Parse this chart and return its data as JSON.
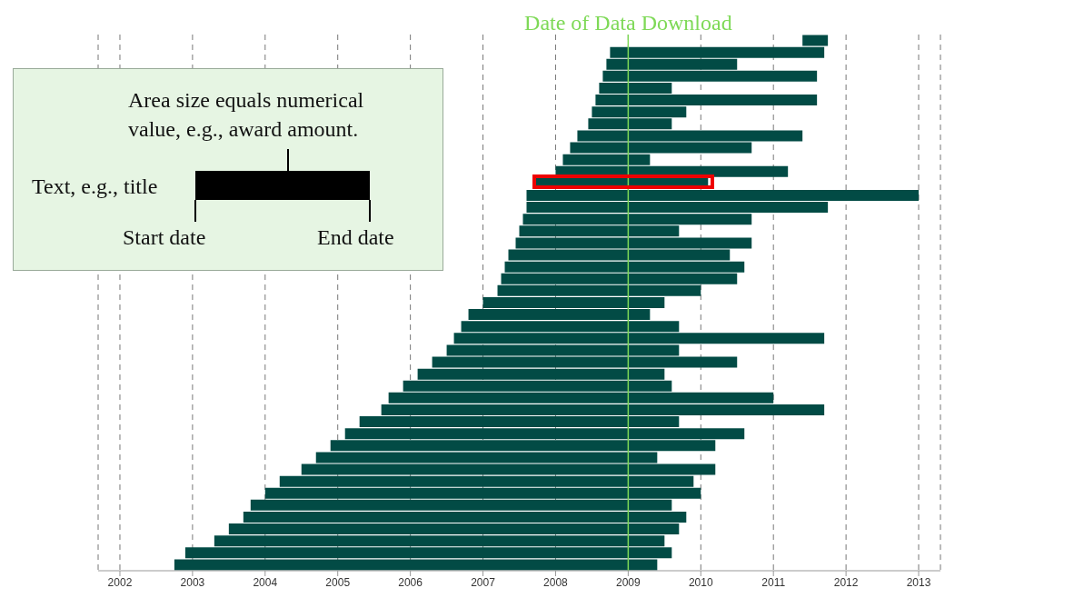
{
  "chart_data": {
    "type": "bar",
    "orientation": "horizontal",
    "tick_labels": "x",
    "grid": "x",
    "legend": false,
    "categories": [
      null,
      null,
      null,
      null,
      null,
      null,
      null,
      null,
      null,
      null,
      null,
      null,
      null,
      null,
      null,
      null,
      null,
      null,
      null,
      null,
      null,
      null,
      null,
      null,
      null,
      null,
      null,
      null,
      null,
      null,
      null,
      null,
      null,
      null,
      null,
      null,
      null,
      null,
      null,
      null,
      null,
      null,
      null,
      null,
      null
    ],
    "series": [
      {
        "color": "#024b45",
        "base": [
          2011.4,
          2008.75,
          2008.7,
          2008.65,
          2008.6,
          2008.55,
          2008.5,
          2008.45,
          2008.3,
          2008.2,
          2008.1,
          2008.0,
          2007.7,
          2007.6,
          2007.6,
          2007.55,
          2007.5,
          2007.45,
          2007.35,
          2007.3,
          2007.25,
          2007.2,
          2007.0,
          2006.8,
          2006.7,
          2006.6,
          2006.5,
          2006.3,
          2006.1,
          2005.9,
          2005.7,
          2005.6,
          2005.3,
          2005.1,
          2004.9,
          2004.7,
          2004.5,
          2004.2,
          2004.0,
          2003.8,
          2003.7,
          2003.5,
          2003.3,
          2002.9,
          2002.75
        ],
        "values": [
          0.35,
          2.95,
          1.8,
          2.95,
          1.0,
          3.05,
          1.3,
          1.15,
          3.1,
          2.5,
          1.2,
          3.2,
          2.4,
          5.4,
          4.15,
          3.15,
          2.2,
          3.25,
          3.05,
          3.3,
          3.25,
          2.8,
          2.5,
          2.5,
          3.0,
          5.1,
          3.2,
          4.2,
          3.4,
          3.7,
          5.3,
          6.1,
          4.4,
          5.5,
          5.3,
          4.7,
          5.7,
          5.7,
          6.0,
          5.8,
          6.1,
          6.2,
          6.2,
          6.7,
          6.65
        ]
      }
    ],
    "xlim": [
      2001.7,
      2013.3
    ],
    "xticks": [
      2002,
      2003,
      2004,
      2005,
      2006,
      2007,
      2008,
      2009,
      2010,
      2011,
      2012,
      2013
    ],
    "ref_lines": [
      {
        "axis": "x",
        "value": 2009,
        "label": "Date of Data Download",
        "color": "#7ed957"
      }
    ],
    "annotations": [
      "Area size equals numerical value, e.g., award amount.",
      "Text, e.g., title",
      "Start date",
      "End date"
    ]
  }
}
